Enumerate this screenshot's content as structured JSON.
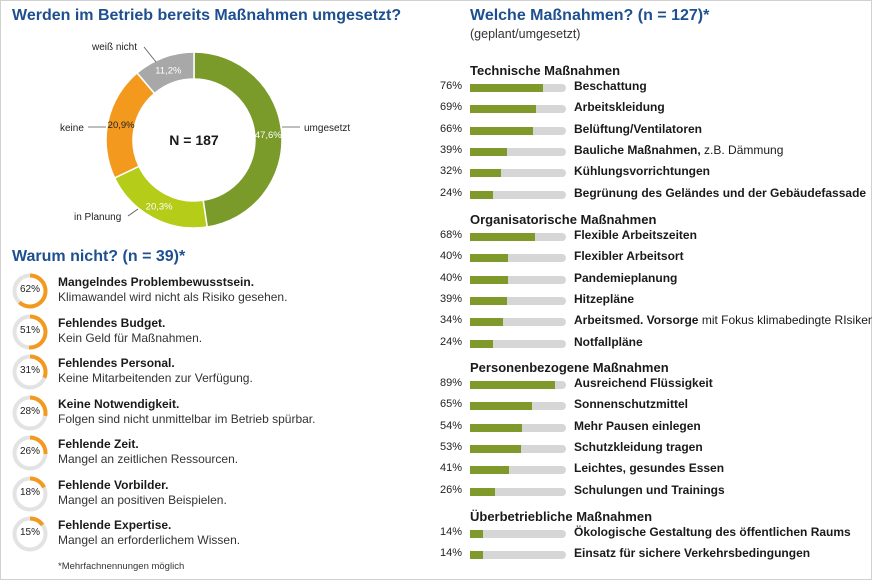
{
  "left": {
    "title": "Werden im Betrieb bereits Maßnahmen umgesetzt?",
    "center_label": "N = 187"
  },
  "chart_data": [
    {
      "type": "pie",
      "title": "Werden im Betrieb bereits Maßnahmen umgesetzt?",
      "center_label": "N = 187",
      "slices": [
        {
          "label": "umgesetzt",
          "value": 47.6,
          "display": "47,6%",
          "color": "#7a9a2a"
        },
        {
          "label": "in Planung",
          "value": 20.3,
          "display": "20,3%",
          "color": "#b5cc18"
        },
        {
          "label": "keine",
          "value": 20.9,
          "display": "20,9%",
          "color": "#f39a1e"
        },
        {
          "label": "weiß nicht",
          "value": 11.2,
          "display": "11,2%",
          "color": "#a8a8a8"
        }
      ]
    },
    {
      "type": "bar",
      "title": "Welche Maßnahmen? (n = 127)*",
      "subtitle": "(geplant/umgesetzt)",
      "groups": [
        {
          "name": "Technische Maßnahmen",
          "items": [
            {
              "label": "Beschattung",
              "suffix": "",
              "value": 76
            },
            {
              "label": "Arbeitskleidung",
              "suffix": "",
              "value": 69
            },
            {
              "label": "Belüftung/Ventilatoren",
              "suffix": "",
              "value": 66
            },
            {
              "label": "Bauliche Maßnahmen,",
              "suffix": " z.B. Dämmung",
              "value": 39
            },
            {
              "label": "Kühlungsvorrichtungen",
              "suffix": "",
              "value": 32
            },
            {
              "label": "Begrünung des Geländes und der Gebäudefassade",
              "suffix": "",
              "value": 24
            }
          ]
        },
        {
          "name": "Organisatorische Maßnahmen",
          "items": [
            {
              "label": "Flexible Arbeitszeiten",
              "suffix": "",
              "value": 68
            },
            {
              "label": "Flexibler Arbeitsort",
              "suffix": "",
              "value": 40
            },
            {
              "label": "Pandemieplanung",
              "suffix": "",
              "value": 40
            },
            {
              "label": "Hitzepläne",
              "suffix": "",
              "value": 39
            },
            {
              "label": "Arbeitsmed. Vorsorge",
              "suffix": " mit Fokus klimabedingte RIsiken",
              "value": 34
            },
            {
              "label": "Notfallpläne",
              "suffix": "",
              "value": 24
            }
          ]
        },
        {
          "name": "Personenbezogene Maßnahmen",
          "items": [
            {
              "label": "Ausreichend Flüssigkeit",
              "suffix": "",
              "value": 89
            },
            {
              "label": "Sonnenschutzmittel",
              "suffix": "",
              "value": 65
            },
            {
              "label": "Mehr Pausen einlegen",
              "suffix": "",
              "value": 54
            },
            {
              "label": "Schutzkleidung tragen",
              "suffix": "",
              "value": 53
            },
            {
              "label": "Leichtes, gesundes Essen",
              "suffix": "",
              "value": 41
            },
            {
              "label": "Schulungen und Trainings",
              "suffix": "",
              "value": 26
            }
          ]
        },
        {
          "name": "Überbetriebliche Maßnahmen",
          "items": [
            {
              "label": "Ökologische Gestaltung des öffentlichen Raums",
              "suffix": "",
              "value": 14
            },
            {
              "label": "Einsatz für sichere Verkehrsbedingungen",
              "suffix": "",
              "value": 14
            }
          ]
        }
      ],
      "ylim": [
        0,
        100
      ],
      "bar_color": "#7f9a2b",
      "track_color": "#d6d6d6"
    },
    {
      "type": "pie",
      "title": "Warum nicht? (n = 39)*",
      "reasons": [
        {
          "value": 62,
          "title": "Mangelndes Problembewusstsein.",
          "desc": "Klimawandel wird nicht als Risiko gesehen."
        },
        {
          "value": 51,
          "title": "Fehlendes Budget.",
          "desc": "Kein Geld für Maßnahmen."
        },
        {
          "value": 31,
          "title": "Fehlendes Personal.",
          "desc": "Keine Mitarbeitenden zur Verfügung."
        },
        {
          "value": 28,
          "title": "Keine Notwendigkeit.",
          "desc": "Folgen sind nicht unmittelbar im Betrieb spürbar."
        },
        {
          "value": 26,
          "title": "Fehlende Zeit.",
          "desc": "Mangel an zeitlichen Ressourcen."
        },
        {
          "value": 18,
          "title": "Fehlende Vorbilder.",
          "desc": "Mangel an positiven Beispielen."
        },
        {
          "value": 15,
          "title": "Fehlende Expertise.",
          "desc": "Mangel an erforderlichem Wissen."
        }
      ],
      "ring_color": "#f39a1e",
      "ring_track_color": "#e3e3e3"
    }
  ],
  "reasons_title": "Warum nicht? (n = 39)*",
  "footnote": "*Mehrfachnennungen möglich",
  "right": {
    "title": "Welche Maßnahmen? (n = 127)*",
    "subtitle": "(geplant/umgesetzt)"
  }
}
